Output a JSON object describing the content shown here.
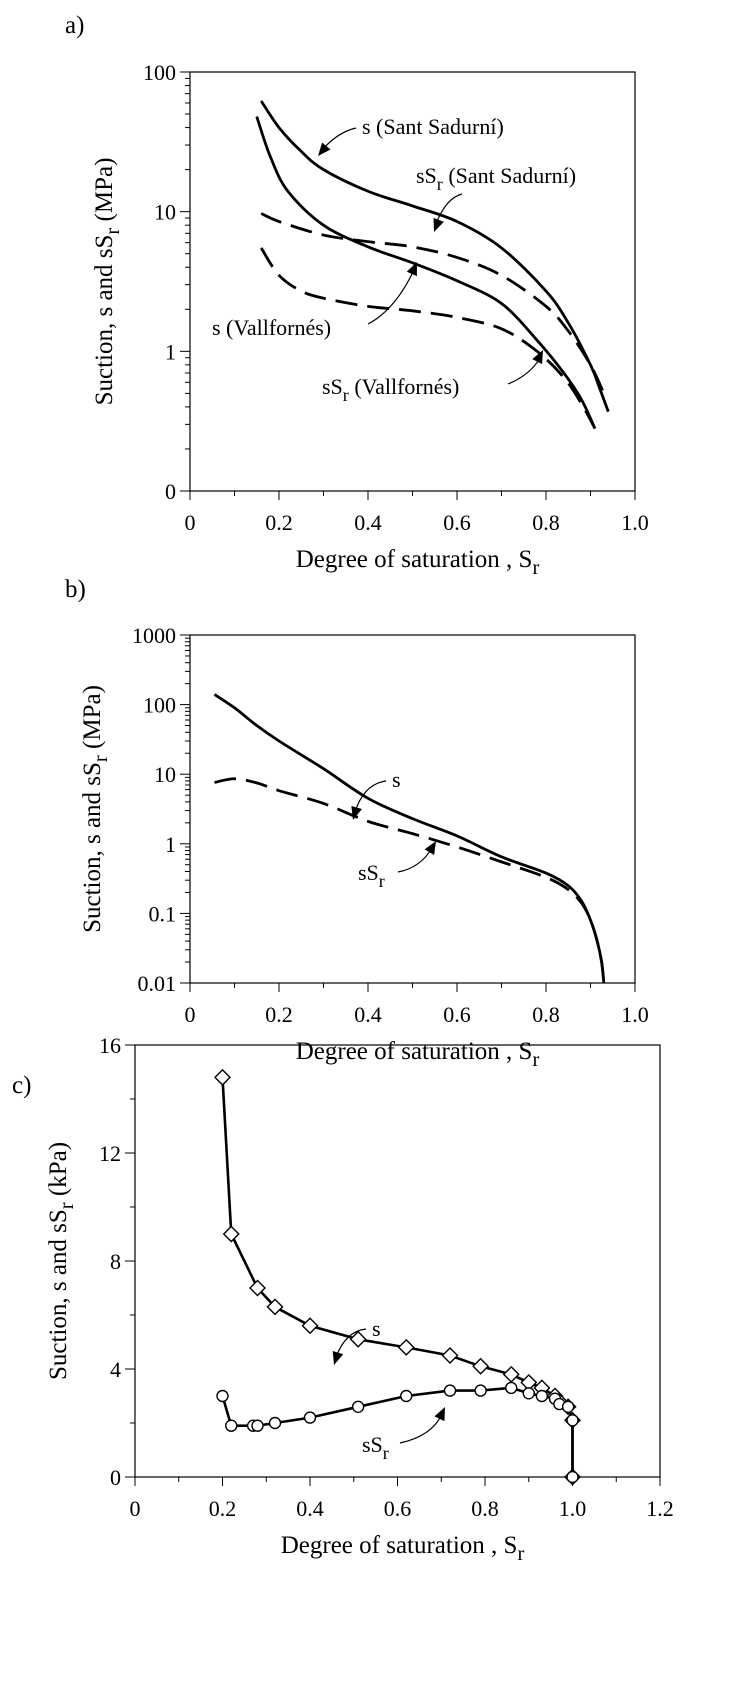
{
  "chart_data": [
    {
      "panel": "a)",
      "type": "line",
      "xlabel": "Degree of saturation , S",
      "xlabel_sub": "r",
      "ylabel": "Suction, s and sS",
      "ylabel_sub": "r",
      "ylabel_unit": " (MPa)",
      "y_scale": "log",
      "xlim": [
        0,
        1.0
      ],
      "ylim": [
        0.1,
        100
      ],
      "x_ticks": [
        0,
        0.2,
        0.4,
        0.6,
        0.8,
        1.0
      ],
      "x_tick_labels": [
        "0",
        "0.2",
        "0.4",
        "0.6",
        "0.8",
        "1.0"
      ],
      "y_ticks": [
        0.1,
        1,
        10,
        100
      ],
      "y_tick_labels": [
        "0",
        "1",
        "10",
        "100"
      ],
      "series": [
        {
          "name": "s (Sant Sadurní)",
          "style": "solid",
          "x": [
            0.16,
            0.2,
            0.25,
            0.3,
            0.4,
            0.5,
            0.6,
            0.7,
            0.8,
            0.85,
            0.9,
            0.92,
            0.94
          ],
          "y": [
            62,
            40,
            27,
            20,
            14,
            11,
            8.5,
            5.5,
            2.7,
            1.6,
            0.8,
            0.55,
            0.37
          ]
        },
        {
          "name": "sS",
          "name_sub": "r",
          "name_suffix": " (Sant Sadurní)",
          "style": "dashed",
          "x": [
            0.16,
            0.2,
            0.3,
            0.4,
            0.5,
            0.6,
            0.7,
            0.8,
            0.85,
            0.9,
            0.93
          ],
          "y": [
            9.7,
            8.5,
            6.8,
            6.1,
            5.6,
            4.7,
            3.5,
            2.1,
            1.4,
            0.8,
            0.5
          ]
        },
        {
          "name": "s (Vallfornés)",
          "style": "solid",
          "x": [
            0.15,
            0.18,
            0.22,
            0.3,
            0.4,
            0.5,
            0.6,
            0.7,
            0.78,
            0.84,
            0.88,
            0.91
          ],
          "y": [
            48,
            25,
            14,
            8,
            5.6,
            4.3,
            3.2,
            2.2,
            1.2,
            0.7,
            0.45,
            0.28
          ]
        },
        {
          "name": "sS",
          "name_sub": "r",
          "name_suffix": " (Vallfornés)",
          "style": "dashed",
          "x": [
            0.16,
            0.2,
            0.25,
            0.3,
            0.4,
            0.5,
            0.6,
            0.7,
            0.78,
            0.84,
            0.88,
            0.91
          ],
          "y": [
            5.5,
            3.5,
            2.7,
            2.4,
            2.1,
            1.95,
            1.75,
            1.45,
            1.0,
            0.65,
            0.42,
            0.28
          ]
        }
      ]
    },
    {
      "panel": "b)",
      "type": "line",
      "xlabel": "Degree of saturation , S",
      "xlabel_sub": "r",
      "ylabel": "Suction, s and sS",
      "ylabel_sub": "r",
      "ylabel_unit": " (MPa)",
      "y_scale": "log",
      "xlim": [
        0,
        1.0
      ],
      "ylim": [
        0.01,
        1000
      ],
      "x_ticks": [
        0,
        0.2,
        0.4,
        0.6,
        0.8,
        1.0
      ],
      "x_tick_labels": [
        "0",
        "0.2",
        "0.4",
        "0.6",
        "0.8",
        "1.0"
      ],
      "y_ticks": [
        0.01,
        0.1,
        1,
        10,
        100,
        1000
      ],
      "y_tick_labels": [
        "0.01",
        "0.1",
        "1",
        "10",
        "100",
        "1000"
      ],
      "series": [
        {
          "name": "s",
          "style": "solid",
          "x": [
            0.055,
            0.1,
            0.15,
            0.2,
            0.3,
            0.4,
            0.5,
            0.6,
            0.7,
            0.8,
            0.85,
            0.88,
            0.9,
            0.915,
            0.925,
            0.93
          ],
          "y": [
            140,
            90,
            50,
            30,
            12,
            4.5,
            2.3,
            1.3,
            0.65,
            0.38,
            0.25,
            0.15,
            0.08,
            0.04,
            0.02,
            0.01
          ]
        },
        {
          "name": "sS",
          "name_sub": "r",
          "style": "dashed",
          "x": [
            0.055,
            0.1,
            0.15,
            0.2,
            0.3,
            0.4,
            0.5,
            0.6,
            0.7,
            0.8,
            0.85,
            0.88,
            0.9,
            0.915,
            0.925,
            0.93
          ],
          "y": [
            7.6,
            8.6,
            7.5,
            5.8,
            3.8,
            2.1,
            1.4,
            0.9,
            0.55,
            0.33,
            0.22,
            0.14,
            0.08,
            0.04,
            0.02,
            0.01
          ]
        }
      ]
    },
    {
      "panel": "c)",
      "type": "line",
      "xlabel": "Degree of saturation , S",
      "xlabel_sub": "r",
      "ylabel": "Suction, s and sS",
      "ylabel_sub": "r",
      "ylabel_unit": "  (kPa)",
      "y_scale": "linear",
      "xlim": [
        0,
        1.2
      ],
      "ylim": [
        0,
        16
      ],
      "x_ticks": [
        0,
        0.2,
        0.4,
        0.6,
        0.8,
        1.0,
        1.2
      ],
      "x_tick_labels": [
        "0",
        "0.2",
        "0.4",
        "0.6",
        "0.8",
        "1.0",
        "1.2"
      ],
      "y_ticks": [
        0,
        4,
        8,
        12,
        16
      ],
      "y_tick_labels": [
        "0",
        "4",
        "8",
        "12",
        "16"
      ],
      "series": [
        {
          "name": "s",
          "marker": "diamond",
          "x": [
            0.2,
            0.22,
            0.28,
            0.32,
            0.4,
            0.51,
            0.62,
            0.72,
            0.79,
            0.86,
            0.9,
            0.93,
            0.96,
            0.97,
            0.99,
            1.0,
            1.0
          ],
          "y": [
            14.8,
            9.0,
            7.0,
            6.3,
            5.6,
            5.1,
            4.8,
            4.5,
            4.1,
            3.8,
            3.5,
            3.3,
            3.0,
            2.8,
            2.6,
            2.1,
            0
          ]
        },
        {
          "name": "sS",
          "name_sub": "r",
          "marker": "circle",
          "x": [
            0.2,
            0.22,
            0.27,
            0.28,
            0.32,
            0.4,
            0.51,
            0.62,
            0.72,
            0.79,
            0.86,
            0.9,
            0.93,
            0.96,
            0.97,
            0.99,
            1.0,
            1.0
          ],
          "y": [
            3.0,
            1.9,
            1.9,
            1.9,
            2.0,
            2.2,
            2.6,
            3.0,
            3.2,
            3.2,
            3.3,
            3.1,
            3.0,
            2.9,
            2.7,
            2.6,
            2.1,
            0
          ]
        }
      ]
    }
  ]
}
